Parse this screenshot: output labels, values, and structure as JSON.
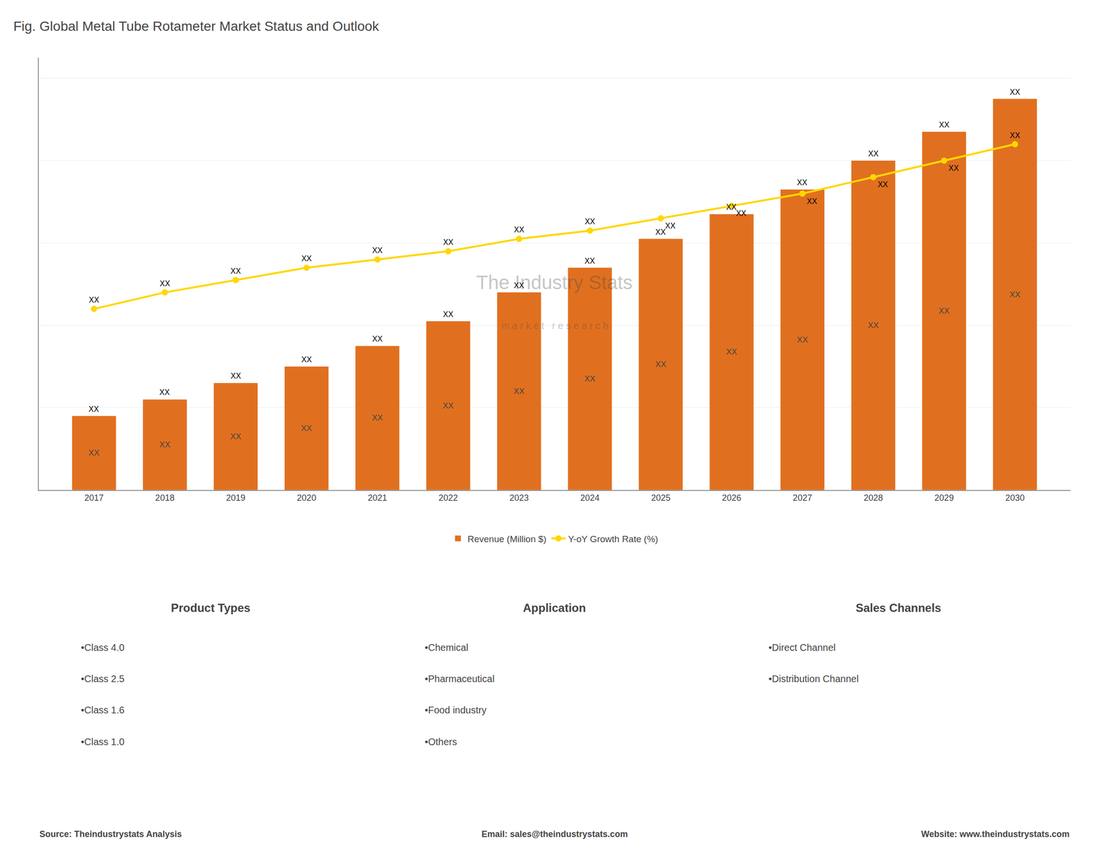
{
  "chart_data": {
    "type": "bar",
    "title": "Fig. Global Metal Tube Rotameter Market Status and Outlook",
    "categories": [
      "2017",
      "2018",
      "2019",
      "2020",
      "2021",
      "2022",
      "2023",
      "2024",
      "2025",
      "2026",
      "2027",
      "2028",
      "2029",
      "2030"
    ],
    "series": [
      {
        "name": "Revenue (Million $)",
        "type": "bar",
        "color": "#E07020",
        "values": [
          0.18,
          0.22,
          0.26,
          0.3,
          0.35,
          0.41,
          0.48,
          0.54,
          0.61,
          0.67,
          0.73,
          0.8,
          0.87,
          0.95
        ],
        "value_labels": [
          "XX",
          "XX",
          "XX",
          "XX",
          "XX",
          "XX",
          "XX",
          "XX",
          "XX",
          "XX",
          "XX",
          "XX",
          "XX",
          "XX"
        ]
      },
      {
        "name": "Y-oY Growth Rate (%)",
        "type": "line",
        "color": "#FFD700",
        "marker": "circle",
        "values": [
          0.44,
          0.48,
          0.51,
          0.54,
          0.56,
          0.58,
          0.61,
          0.63,
          0.66,
          0.69,
          0.72,
          0.76,
          0.8,
          0.84
        ],
        "value_labels": [
          "XX",
          "XX",
          "XX",
          "XX",
          "XX",
          "XX",
          "XX",
          "XX",
          "XX",
          "XX",
          "XX",
          "XX",
          "XX",
          "XX"
        ]
      }
    ],
    "ylim": [
      0,
      1.05
    ],
    "yticks": [
      0,
      0.2,
      0.4,
      0.6,
      0.8,
      1.0
    ],
    "grid": true,
    "legend": "bottom",
    "data_labels": true,
    "tick_labels": "x",
    "watermark": [
      "The Industry Stats",
      "m a r k e t   r e s e a r c h"
    ],
    "panels": [
      {
        "title": "Product Types",
        "items": [
          "•Class 4.0",
          "•Class 2.5",
          "•Class 1.6",
          "•Class 1.0"
        ]
      },
      {
        "title": "Application",
        "items": [
          "•Chemical",
          "•Pharmaceutical",
          "•Food industry",
          "•Others"
        ]
      },
      {
        "title": "Sales Channels",
        "items": [
          "•Direct Channel",
          "•Distribution Channel"
        ]
      }
    ],
    "footer": [
      "Source: Theindustrystats Analysis",
      "Email: sales@theindustrystats.com",
      "Website: www.theindustrystats.com"
    ]
  }
}
